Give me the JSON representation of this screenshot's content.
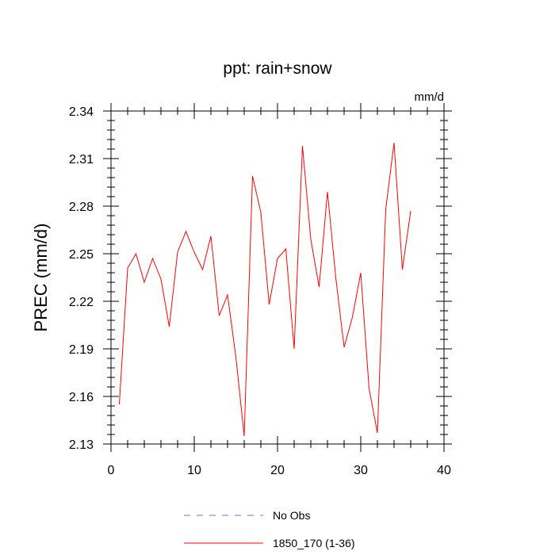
{
  "chart_data": {
    "type": "line",
    "title": "ppt: rain+snow",
    "units_label": "mm/d",
    "xlabel": "",
    "ylabel": "PREC  (mm/d)",
    "xlim": [
      0,
      40
    ],
    "ylim": [
      2.13,
      2.34
    ],
    "xticks": [
      0,
      10,
      20,
      30,
      40
    ],
    "xtick_labels": [
      "0",
      "10",
      "20",
      "30",
      "40"
    ],
    "yticks": [
      2.13,
      2.16,
      2.19,
      2.22,
      2.25,
      2.28,
      2.31,
      2.34
    ],
    "ytick_labels": [
      "2.13",
      "2.16",
      "2.19",
      "2.22",
      "2.25",
      "2.28",
      "2.31",
      "2.34"
    ],
    "grid": false,
    "legend_position": "bottom",
    "series": [
      {
        "name": "No Obs",
        "color": "#6a6aff",
        "dash": "dashed",
        "x": [],
        "values": []
      },
      {
        "name": "1850_170 (1-36)",
        "color": "#ff0000",
        "dash": "solid",
        "x": [
          1,
          2,
          3,
          4,
          5,
          6,
          7,
          8,
          9,
          10,
          11,
          12,
          13,
          14,
          15,
          16,
          17,
          18,
          19,
          20,
          21,
          22,
          23,
          24,
          25,
          26,
          27,
          28,
          29,
          30,
          31,
          32,
          33,
          34,
          35,
          36
        ],
        "values": [
          2.155,
          2.241,
          2.25,
          2.232,
          2.247,
          2.234,
          2.204,
          2.251,
          2.264,
          2.251,
          2.24,
          2.261,
          2.211,
          2.224,
          2.185,
          2.135,
          2.299,
          2.276,
          2.218,
          2.247,
          2.253,
          2.19,
          2.318,
          2.259,
          2.229,
          2.289,
          2.235,
          2.191,
          2.21,
          2.238,
          2.165,
          2.137,
          2.278,
          2.32,
          2.24,
          2.277
        ]
      }
    ]
  }
}
